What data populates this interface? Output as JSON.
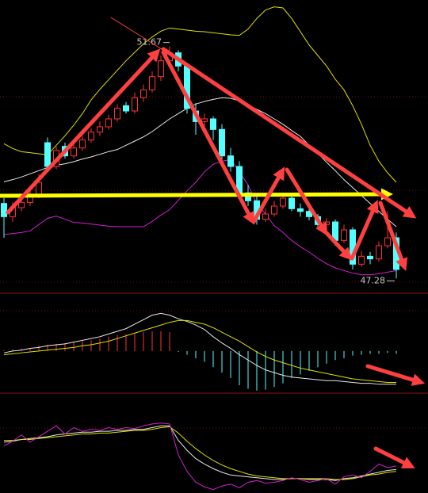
{
  "chart_data": {
    "type": "candlestick",
    "up_color": "#ff3232",
    "down_color": "#54ffff",
    "ylim": [
      47,
      52.55
    ],
    "ohlc": [
      [
        48.7,
        48.8,
        48.05,
        48.45
      ],
      [
        48.45,
        48.72,
        48.35,
        48.62
      ],
      [
        48.62,
        48.82,
        48.55,
        48.72
      ],
      [
        48.72,
        48.95,
        48.65,
        48.85
      ],
      [
        48.85,
        49.25,
        48.8,
        49.1
      ],
      [
        49.85,
        49.95,
        49.3,
        49.4
      ],
      [
        49.4,
        49.78,
        49.35,
        49.7
      ],
      [
        49.78,
        49.85,
        49.55,
        49.6
      ],
      [
        49.6,
        49.82,
        49.55,
        49.75
      ],
      [
        49.75,
        49.98,
        49.7,
        49.9
      ],
      [
        49.9,
        50.12,
        49.85,
        50.05
      ],
      [
        50.05,
        50.25,
        49.98,
        50.15
      ],
      [
        50.15,
        50.38,
        50.1,
        50.3
      ],
      [
        50.3,
        50.58,
        50.25,
        50.5
      ],
      [
        50.55,
        50.62,
        50.4,
        50.45
      ],
      [
        50.45,
        50.8,
        50.4,
        50.7
      ],
      [
        50.7,
        50.95,
        50.62,
        50.85
      ],
      [
        50.85,
        51.2,
        50.8,
        51.1
      ],
      [
        51.1,
        51.5,
        51.02,
        51.4
      ],
      [
        51.4,
        51.67,
        51.35,
        51.55
      ],
      [
        51.55,
        51.6,
        51.2,
        51.3
      ],
      [
        51.3,
        51.35,
        50.4,
        50.5
      ],
      [
        50.45,
        50.6,
        50.0,
        50.25
      ],
      [
        50.25,
        50.4,
        50.15,
        50.3
      ],
      [
        50.3,
        50.35,
        49.9,
        50.1
      ],
      [
        50.1,
        50.2,
        49.5,
        49.6
      ],
      [
        49.6,
        49.75,
        49.3,
        49.4
      ],
      [
        49.4,
        49.5,
        48.8,
        48.9
      ],
      [
        48.9,
        49.05,
        48.65,
        48.75
      ],
      [
        48.75,
        48.85,
        48.3,
        48.4
      ],
      [
        48.4,
        48.6,
        48.35,
        48.5
      ],
      [
        48.5,
        48.75,
        48.45,
        48.65
      ],
      [
        48.65,
        48.9,
        48.6,
        48.8
      ],
      [
        48.8,
        48.85,
        48.55,
        48.6
      ],
      [
        48.6,
        48.7,
        48.45,
        48.55
      ],
      [
        48.55,
        48.62,
        48.38,
        48.45
      ],
      [
        48.45,
        48.5,
        48.25,
        48.3
      ],
      [
        48.3,
        48.42,
        48.22,
        48.35
      ],
      [
        48.35,
        48.4,
        47.9,
        48.0
      ],
      [
        48.0,
        48.3,
        47.95,
        48.2
      ],
      [
        48.2,
        48.25,
        47.45,
        47.55
      ],
      [
        47.55,
        47.8,
        47.5,
        47.7
      ],
      [
        47.7,
        47.78,
        47.55,
        47.65
      ],
      [
        47.65,
        47.98,
        47.6,
        47.9
      ],
      [
        47.9,
        48.55,
        47.85,
        48.05
      ],
      [
        48.05,
        48.15,
        47.28,
        47.45
      ]
    ],
    "high_label": {
      "index": 19,
      "text": "51.67"
    },
    "low_label": {
      "index": 45,
      "text": "47.28"
    },
    "bands": [
      {
        "color": "#e0e000",
        "values": [
          49.83,
          49.74,
          49.68,
          49.66,
          49.64,
          49.62,
          49.8,
          49.98,
          50.18,
          50.4,
          50.66,
          50.86,
          51.04,
          51.22,
          51.4,
          51.56,
          51.72,
          51.85,
          51.96,
          52.02,
          52.0,
          51.98,
          51.96,
          51.95,
          51.93,
          51.91,
          51.89,
          51.88,
          52.0,
          52.2,
          52.36,
          52.42,
          52.4,
          52.2,
          51.95,
          51.7,
          51.5,
          51.3,
          51.05,
          50.85,
          50.55,
          50.2,
          49.8,
          49.5,
          49.28,
          49.1
        ]
      },
      {
        "color": "#e8e8e8",
        "values": [
          49.11,
          49.15,
          49.2,
          49.26,
          49.32,
          49.38,
          49.42,
          49.45,
          49.49,
          49.54,
          49.58,
          49.63,
          49.68,
          49.72,
          49.8,
          49.88,
          49.96,
          50.06,
          50.18,
          50.3,
          50.4,
          50.5,
          50.58,
          50.63,
          50.67,
          50.7,
          50.69,
          50.64,
          50.56,
          50.48,
          50.4,
          50.3,
          50.2,
          50.08,
          49.97,
          49.8,
          49.65,
          49.48,
          49.32,
          49.15,
          49.0,
          48.85,
          48.7,
          48.55,
          48.4,
          48.26
        ]
      },
      {
        "color": "#d020d0",
        "values": [
          48.11,
          48.13,
          48.15,
          48.18,
          48.3,
          48.42,
          48.46,
          48.4,
          48.34,
          48.33,
          48.31,
          48.29,
          48.27,
          48.26,
          48.26,
          48.26,
          48.26,
          48.36,
          48.48,
          48.58,
          48.76,
          48.94,
          49.1,
          49.3,
          49.44,
          49.5,
          49.53,
          49.3,
          49.05,
          48.7,
          48.5,
          48.28,
          48.15,
          48.0,
          47.88,
          47.78,
          47.66,
          47.56,
          47.48,
          47.43,
          47.38,
          47.35,
          47.35,
          47.37,
          47.4,
          47.43
        ]
      }
    ],
    "macd": {
      "ylim": [
        -0.46,
        0.6
      ],
      "histogram": [
        0.01,
        0.02,
        0.03,
        0.03,
        0.06,
        0.07,
        0.08,
        0.09,
        0.1,
        0.11,
        0.12,
        0.14,
        0.16,
        0.18,
        0.19,
        0.2,
        0.21,
        0.22,
        0.22,
        0.21,
        -0.01,
        -0.04,
        -0.08,
        -0.12,
        -0.18,
        -0.24,
        -0.3,
        -0.38,
        -0.42,
        -0.44,
        -0.43,
        -0.4,
        -0.36,
        -0.3,
        -0.26,
        -0.22,
        -0.18,
        -0.14,
        -0.1,
        -0.08,
        -0.05,
        -0.04,
        -0.03,
        -0.03,
        -0.02,
        -0.03
      ],
      "lines": [
        {
          "color": "#e8e8e8",
          "values": [
            -0.02,
            0.0,
            0.01,
            0.03,
            0.04,
            0.06,
            0.07,
            0.08,
            0.1,
            0.12,
            0.14,
            0.16,
            0.19,
            0.22,
            0.25,
            0.3,
            0.35,
            0.4,
            0.42,
            0.4,
            0.36,
            0.33,
            0.29,
            0.24,
            0.16,
            0.09,
            0.03,
            -0.04,
            -0.1,
            -0.16,
            -0.21,
            -0.24,
            -0.27,
            -0.29,
            -0.3,
            -0.31,
            -0.32,
            -0.33,
            -0.33,
            -0.34,
            -0.35,
            -0.36,
            -0.36,
            -0.37,
            -0.37,
            -0.37
          ]
        },
        {
          "color": "#e0e000",
          "values": [
            -0.04,
            -0.03,
            -0.02,
            -0.01,
            0.0,
            0.01,
            0.02,
            0.03,
            0.04,
            0.06,
            0.07,
            0.09,
            0.11,
            0.14,
            0.17,
            0.2,
            0.23,
            0.26,
            0.29,
            0.32,
            0.34,
            0.34,
            0.32,
            0.3,
            0.26,
            0.21,
            0.16,
            0.11,
            0.05,
            -0.01,
            -0.06,
            -0.1,
            -0.13,
            -0.16,
            -0.19,
            -0.21,
            -0.23,
            -0.25,
            -0.27,
            -0.29,
            -0.31,
            -0.32,
            -0.33,
            -0.34,
            -0.35,
            -0.35
          ]
        }
      ]
    },
    "kdj": {
      "ylim": [
        0,
        100
      ],
      "lines": [
        {
          "color": "#e8e8e8",
          "values": [
            54,
            55,
            57,
            58,
            59,
            60,
            62,
            63,
            64,
            65,
            65,
            66,
            66,
            67,
            67,
            68,
            68,
            70,
            72,
            72,
            56,
            45,
            36,
            30,
            25,
            21,
            18,
            17,
            16,
            15,
            14,
            13,
            13,
            14,
            14,
            13,
            13,
            13,
            12,
            14,
            15,
            17,
            19,
            21,
            23,
            24
          ]
        },
        {
          "color": "#e0e000",
          "values": [
            56,
            56,
            57,
            57,
            58,
            59,
            60,
            61,
            62,
            63,
            63,
            64,
            64,
            65,
            66,
            67,
            67,
            68,
            70,
            71,
            64,
            55,
            47,
            40,
            34,
            29,
            25,
            22,
            19,
            17,
            16,
            15,
            14,
            14,
            14,
            14,
            14,
            14,
            13,
            13,
            14,
            16,
            18,
            19,
            21,
            22
          ]
        },
        {
          "color": "#d020d0",
          "values": [
            50,
            55,
            62,
            54,
            60,
            66,
            72,
            63,
            70,
            66,
            68,
            67,
            70,
            68,
            70,
            69,
            72,
            74,
            75,
            74,
            40,
            22,
            10,
            5,
            2,
            6,
            8,
            4,
            10,
            12,
            9,
            10,
            12,
            15,
            13,
            10,
            12,
            14,
            8,
            16,
            18,
            15,
            22,
            30,
            26,
            28
          ]
        }
      ]
    }
  }
}
